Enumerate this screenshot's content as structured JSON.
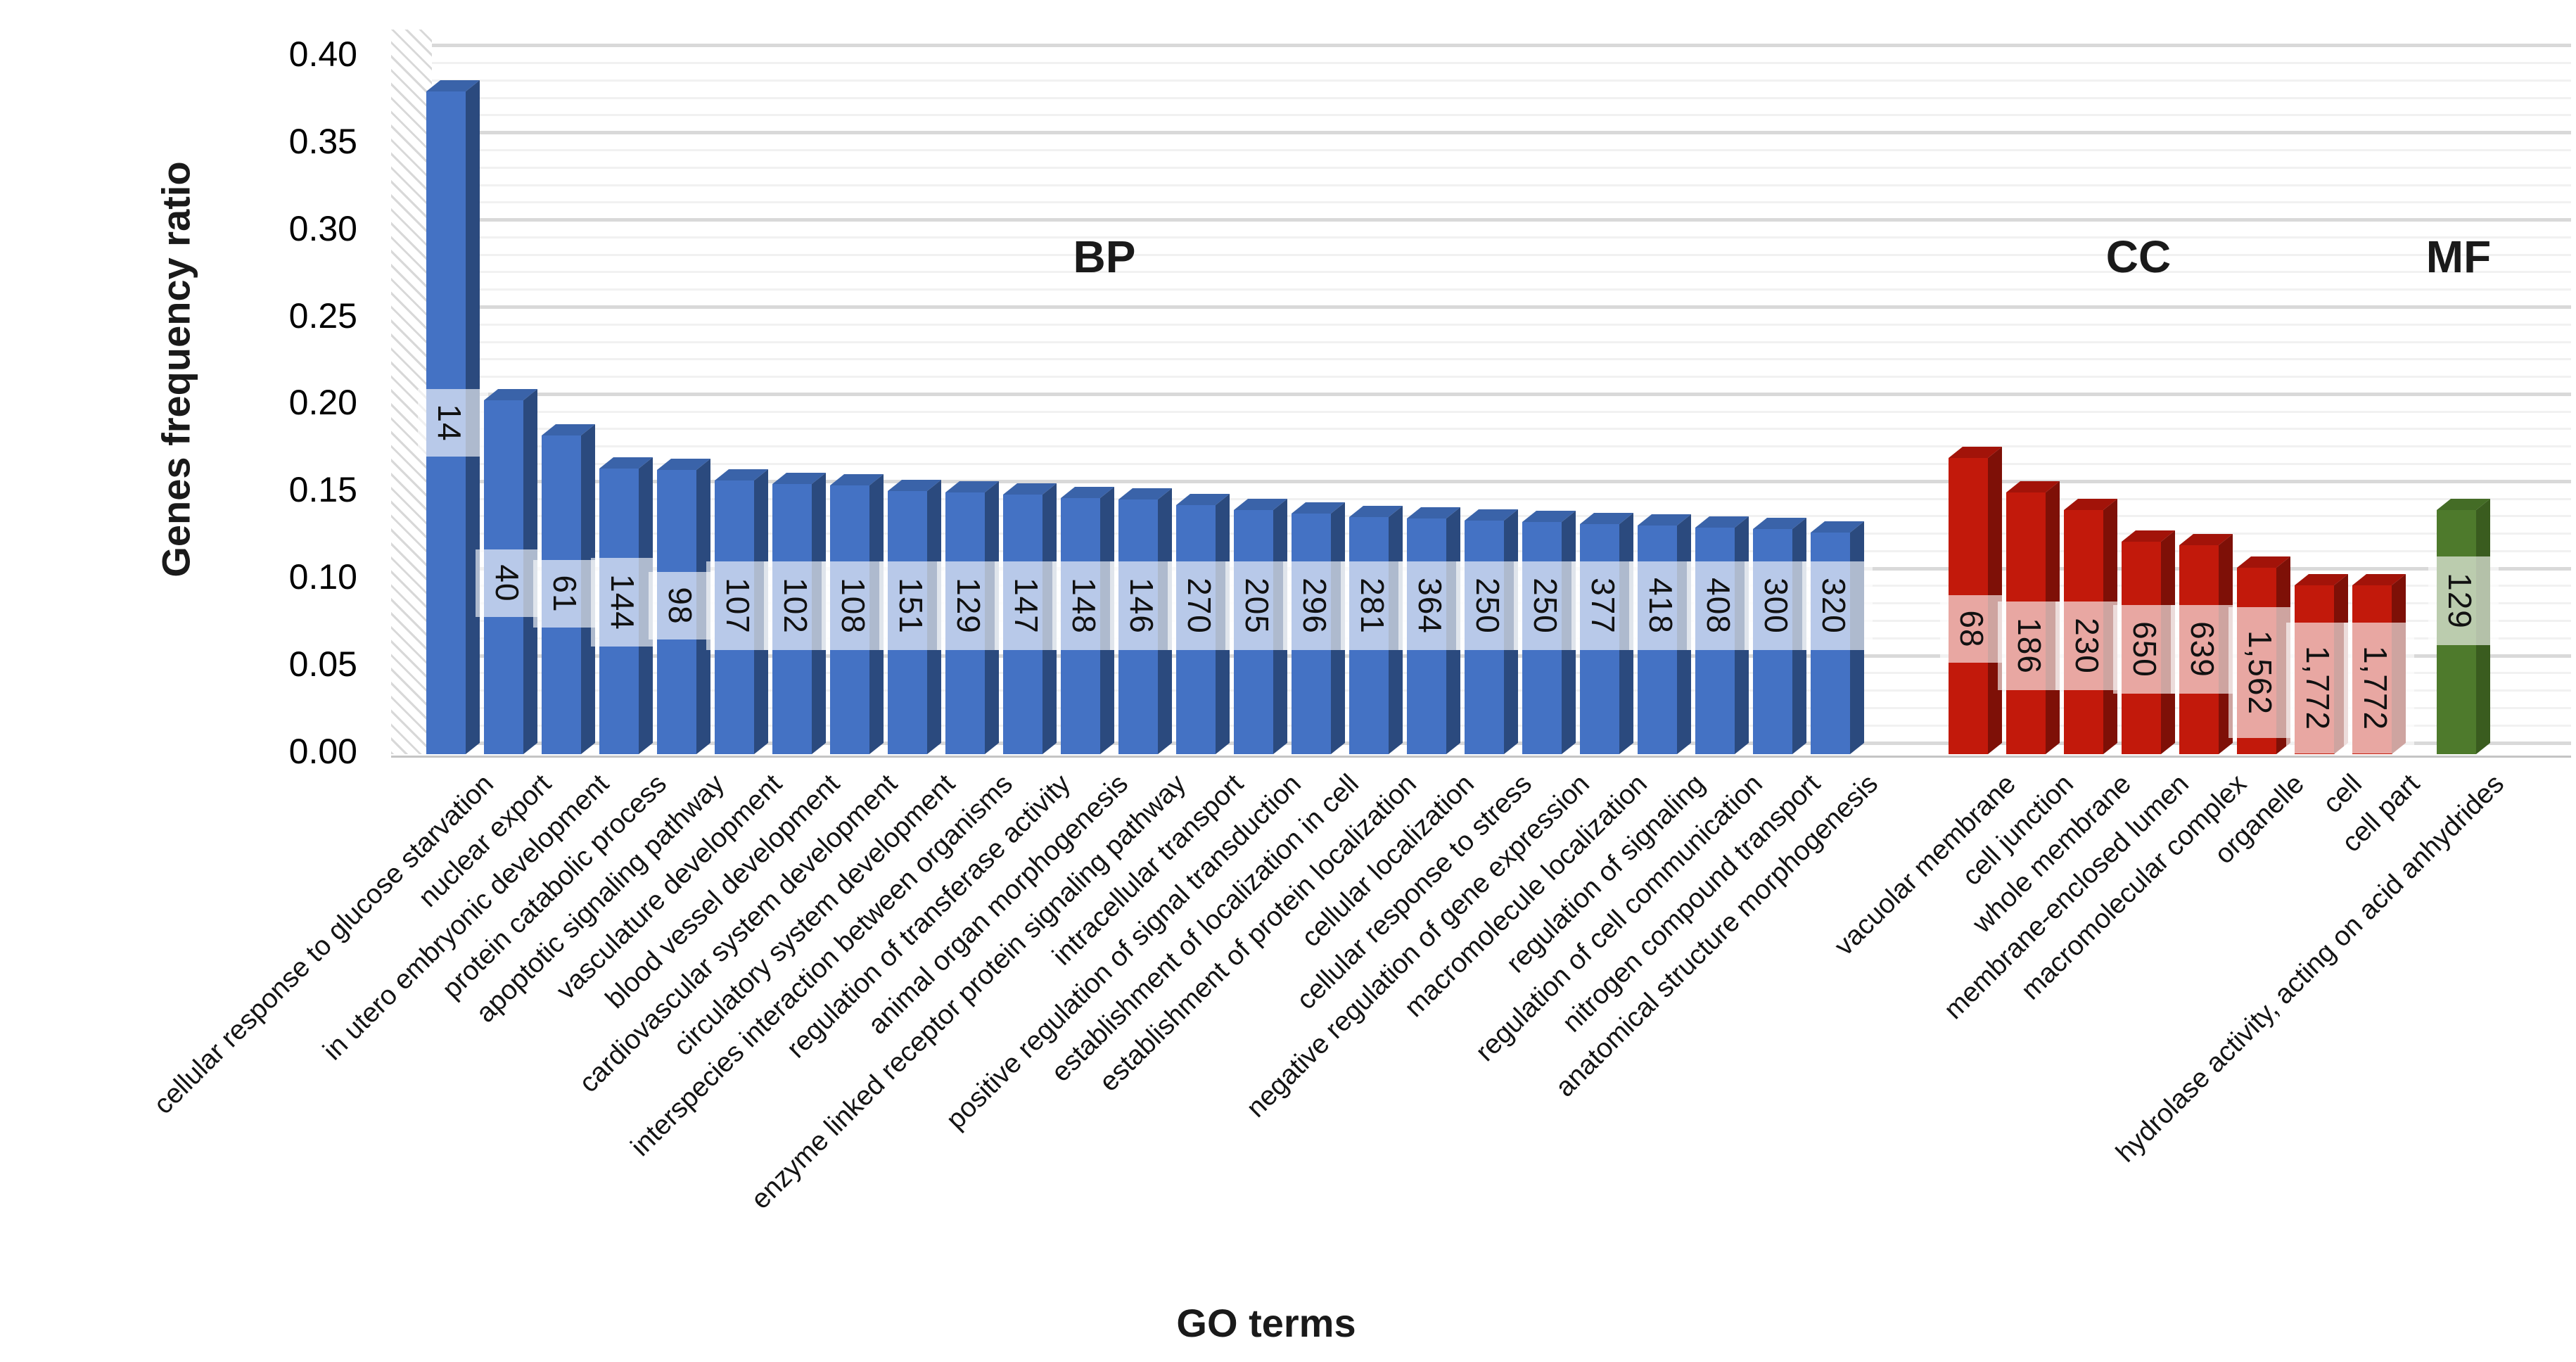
{
  "chart_data": {
    "type": "bar",
    "title": "",
    "xlabel": "GO terms",
    "ylabel": "Genes frequency ratio",
    "ylim": [
      0,
      0.4
    ],
    "ytick_step": 0.05,
    "minor_grid_step": 0.01,
    "grid": "on",
    "legend": "none",
    "ytick_labels": [
      "0.00",
      "0.05",
      "0.10",
      "0.15",
      "0.20",
      "0.25",
      "0.30",
      "0.35",
      "0.40"
    ],
    "style": "3d-bars-with-count-bands",
    "groups": [
      {
        "name": "BP",
        "front": "#4472C4",
        "side": "#2B4A7E",
        "top": "#3A63A9",
        "bars": [
          {
            "category": "cellular response to glucose starvation",
            "ratio": 0.38,
            "count": "14",
            "band_v": 0.19
          },
          {
            "category": "nuclear export",
            "ratio": 0.203,
            "count": "40",
            "band_v": 0.098
          },
          {
            "category": "in utero embryonic development",
            "ratio": 0.183,
            "count": "61",
            "band_v": 0.092
          },
          {
            "category": "protein catabolic process",
            "ratio": 0.164,
            "count": "144",
            "band_v": 0.087
          },
          {
            "category": "apoptotic signaling pathway",
            "ratio": 0.163,
            "count": "98",
            "band_v": 0.085
          },
          {
            "category": "vasculature development",
            "ratio": 0.157,
            "count": "107",
            "band_v": 0.085
          },
          {
            "category": "blood vessel development",
            "ratio": 0.155,
            "count": "102",
            "band_v": 0.085
          },
          {
            "category": "cardiovascular system development",
            "ratio": 0.154,
            "count": "108",
            "band_v": 0.085
          },
          {
            "category": "circulatory system development",
            "ratio": 0.151,
            "count": "151",
            "band_v": 0.085
          },
          {
            "category": "interspecies interaction between organisms",
            "ratio": 0.15,
            "count": "129",
            "band_v": 0.085
          },
          {
            "category": "regulation of transferase activity",
            "ratio": 0.149,
            "count": "147",
            "band_v": 0.085
          },
          {
            "category": "animal organ morphogenesis",
            "ratio": 0.147,
            "count": "148",
            "band_v": 0.085
          },
          {
            "category": "enzyme linked receptor protein signaling pathway",
            "ratio": 0.146,
            "count": "146",
            "band_v": 0.085
          },
          {
            "category": "intracellular transport",
            "ratio": 0.143,
            "count": "270",
            "band_v": 0.085
          },
          {
            "category": "positive regulation of signal transduction",
            "ratio": 0.14,
            "count": "205",
            "band_v": 0.085
          },
          {
            "category": "establishment of localization in cell",
            "ratio": 0.138,
            "count": "296",
            "band_v": 0.085
          },
          {
            "category": "establishment of protein localization",
            "ratio": 0.136,
            "count": "281",
            "band_v": 0.085
          },
          {
            "category": "cellular localization",
            "ratio": 0.135,
            "count": "364",
            "band_v": 0.085
          },
          {
            "category": "cellular response to stress",
            "ratio": 0.134,
            "count": "250",
            "band_v": 0.085
          },
          {
            "category": "negative regulation of gene expression",
            "ratio": 0.133,
            "count": "250",
            "band_v": 0.085
          },
          {
            "category": "macromolecule localization",
            "ratio": 0.132,
            "count": "377",
            "band_v": 0.085
          },
          {
            "category": "regulation of signaling",
            "ratio": 0.131,
            "count": "418",
            "band_v": 0.085
          },
          {
            "category": "regulation of cell communication",
            "ratio": 0.13,
            "count": "408",
            "band_v": 0.085
          },
          {
            "category": "nitrogen compound transport",
            "ratio": 0.129,
            "count": "300",
            "band_v": 0.085
          },
          {
            "category": "anatomical structure morphogenesis",
            "ratio": 0.127,
            "count": "320",
            "band_v": 0.085
          }
        ]
      },
      {
        "name": "CC",
        "front": "#C2190B",
        "side": "#7E1007",
        "top": "#A21309",
        "bars": [
          {
            "category": "vacuolar membrane",
            "ratio": 0.17,
            "count": "68",
            "band_v": 0.072
          },
          {
            "category": "cell junction",
            "ratio": 0.15,
            "count": "186",
            "band_v": 0.062
          },
          {
            "category": "whole membrane",
            "ratio": 0.14,
            "count": "230",
            "band_v": 0.062
          },
          {
            "category": "membrane-enclosed lumen",
            "ratio": 0.122,
            "count": "650",
            "band_v": 0.06
          },
          {
            "category": "macromolecular complex",
            "ratio": 0.12,
            "count": "639",
            "band_v": 0.06
          },
          {
            "category": "organelle",
            "ratio": 0.107,
            "count": "1,562",
            "band_v": 0.047
          },
          {
            "category": "cell",
            "ratio": 0.097,
            "count": "1,772",
            "band_v": 0.038
          },
          {
            "category": "cell part",
            "ratio": 0.097,
            "count": "1,772",
            "band_v": 0.038
          }
        ]
      },
      {
        "name": "MF",
        "front": "#4E7A2C",
        "side": "#3A5C1F",
        "top": "#446C26",
        "bars": [
          {
            "category": "hydrolase activity, acting on acid anhydrides",
            "ratio": 0.14,
            "count": "129",
            "band_v": 0.088
          }
        ]
      }
    ]
  }
}
